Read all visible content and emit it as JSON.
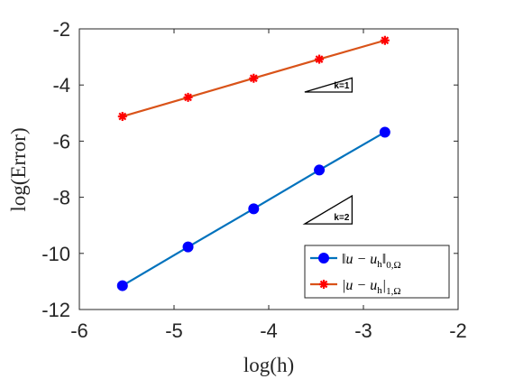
{
  "chart_data": {
    "type": "line",
    "title": "",
    "xlabel": "log(h)",
    "ylabel": "log(Error)",
    "xlim": [
      -6,
      -2
    ],
    "ylim": [
      -12,
      -2
    ],
    "xticks": [
      -6,
      -5,
      -4,
      -3,
      -2
    ],
    "yticks": [
      -12,
      -10,
      -8,
      -6,
      -4,
      -2
    ],
    "grid": false,
    "legend_position": "bottom-right",
    "series": [
      {
        "name": "||u - u_h||_{0,Ω}",
        "color": "#0072BD",
        "marker": "circle",
        "marker_color": "#0000FF",
        "x": [
          -5.545,
          -4.852,
          -4.159,
          -3.466,
          -2.773
        ],
        "y": [
          -11.15,
          -9.77,
          -8.41,
          -7.03,
          -5.68
        ]
      },
      {
        "name": "|u - u_h|_{1,Ω}",
        "color": "#D95319",
        "marker": "asterisk",
        "marker_color": "#FF0000",
        "x": [
          -5.545,
          -4.852,
          -4.159,
          -3.466,
          -2.773
        ],
        "y": [
          -5.12,
          -4.44,
          -3.76,
          -3.08,
          -2.41
        ]
      }
    ],
    "annotations": [
      {
        "label": "k=1",
        "slope": 1,
        "corner": [
          -3.62,
          -4.25
        ],
        "width": 0.5
      },
      {
        "label": "k=2",
        "slope": 2,
        "corner": [
          -3.62,
          -8.95
        ],
        "width": 0.5
      }
    ]
  }
}
